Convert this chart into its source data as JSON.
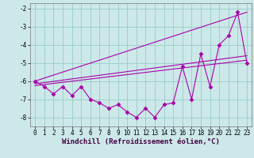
{
  "xlabel": "Windchill (Refroidissement éolien,°C)",
  "x_data": [
    0,
    1,
    2,
    3,
    4,
    5,
    6,
    7,
    8,
    9,
    10,
    11,
    12,
    13,
    14,
    15,
    16,
    17,
    18,
    19,
    20,
    21,
    22,
    23
  ],
  "y_data": [
    -6.0,
    -6.3,
    -6.7,
    -6.3,
    -6.8,
    -6.3,
    -7.0,
    -7.2,
    -7.5,
    -7.3,
    -7.7,
    -8.0,
    -7.5,
    -8.0,
    -7.3,
    -7.2,
    -5.2,
    -7.0,
    -4.5,
    -6.3,
    -4.0,
    -3.5,
    -2.2,
    -5.0
  ],
  "trend1_x": [
    0,
    23
  ],
  "trend1_y": [
    -6.0,
    -2.2
  ],
  "trend2_x": [
    0,
    23
  ],
  "trend2_y": [
    -6.15,
    -4.6
  ],
  "trend3_x": [
    0,
    23
  ],
  "trend3_y": [
    -6.25,
    -4.85
  ],
  "line_color": "#aa00aa",
  "bg_color": "#cce8e8",
  "grid_color": "#99cccc",
  "ylim": [
    -8.5,
    -1.7
  ],
  "xlim": [
    -0.5,
    23.5
  ],
  "yticks": [
    -8,
    -7,
    -6,
    -5,
    -4,
    -3,
    -2
  ],
  "xticks": [
    0,
    1,
    2,
    3,
    4,
    5,
    6,
    7,
    8,
    9,
    10,
    11,
    12,
    13,
    14,
    15,
    16,
    17,
    18,
    19,
    20,
    21,
    22,
    23
  ],
  "marker": "D",
  "markersize": 2.5,
  "linewidth": 0.8,
  "tick_fontsize": 5.5,
  "xlabel_fontsize": 6.5
}
